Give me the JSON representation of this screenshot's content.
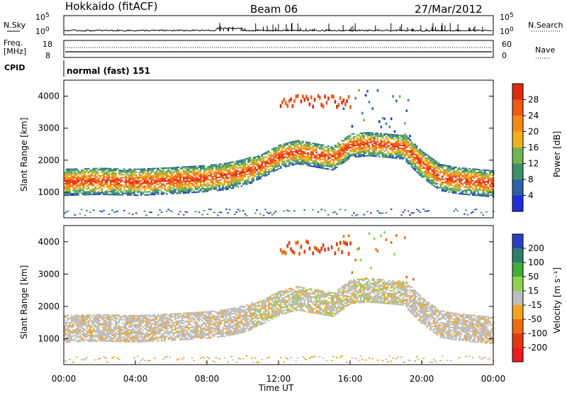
{
  "header": {
    "site": "Hokkaido (fitACF)",
    "beam": "Beam 06",
    "date": "27/Mar/2012"
  },
  "noise_panel": {
    "left_label": "N.Sky",
    "right_label": "N.Search",
    "ticks": [
      {
        "base": "10",
        "exp": "5"
      },
      {
        "base": "10",
        "exp": "0"
      }
    ]
  },
  "freq_panel": {
    "left_label_1": "Freq.",
    "left_label_2": "[MHz]",
    "right_label": "Nave",
    "left_ticks": [
      "18",
      "8"
    ],
    "right_ticks": [
      "60",
      "0"
    ]
  },
  "cpid_panel": {
    "label": "CPID",
    "text": "normal (fast) 151"
  },
  "colors": {
    "power_scale": [
      "#1f2fd8",
      "#2e5fa8",
      "#3f8f6a",
      "#6fb64f",
      "#f2b01e",
      "#f38a18",
      "#ee5a14",
      "#e02a10"
    ],
    "velocity_scale": [
      "#2a3fbf",
      "#2e7d6a",
      "#3fae3a",
      "#8fd14f",
      "#bdbdbd",
      "#f2a41e",
      "#ef6a12",
      "#e23a10",
      "#ee1a1a"
    ]
  },
  "chart_data": [
    {
      "type": "heatmap",
      "panel": "power",
      "ylabel": "Slant Range [km]",
      "xlim": [
        "00:00",
        "00:00"
      ],
      "ylim": [
        200,
        4500
      ],
      "yticks": [
        1000,
        2000,
        3000,
        4000
      ],
      "colorbar": {
        "label": "Power [dB]",
        "ticks": [
          4,
          8,
          12,
          16,
          20,
          24,
          28
        ]
      },
      "echo_band": {
        "times_h": [
          0,
          2,
          4,
          6,
          8,
          9,
          10,
          11,
          12,
          13,
          14,
          15,
          16,
          17,
          18,
          19,
          20,
          21,
          22,
          23,
          24
        ],
        "center_km": [
          1300,
          1330,
          1300,
          1350,
          1420,
          1480,
          1600,
          1800,
          2100,
          2250,
          2150,
          2050,
          2450,
          2500,
          2450,
          2400,
          1850,
          1450,
          1350,
          1300,
          1250
        ]
      }
    },
    {
      "type": "heatmap",
      "panel": "velocity",
      "ylabel": "Slant Range [km]",
      "xlabel": "Time UT",
      "xlim": [
        "00:00",
        "00:00"
      ],
      "ylim": [
        200,
        4500
      ],
      "yticks": [
        1000,
        2000,
        3000,
        4000
      ],
      "colorbar": {
        "label": "Velocity [m s⁻¹]",
        "ticks": [
          200,
          100,
          50,
          15,
          -15,
          -50,
          -100,
          -200
        ]
      },
      "xticks": [
        "00:00",
        "04:00",
        "08:00",
        "12:00",
        "16:00",
        "20:00",
        "00:00"
      ]
    }
  ]
}
